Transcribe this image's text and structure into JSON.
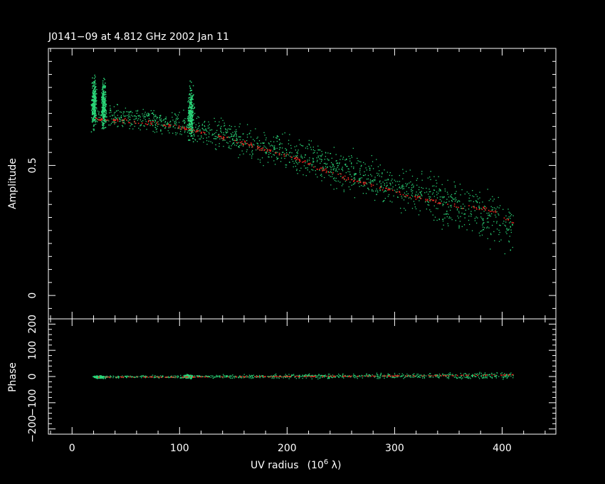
{
  "chart_data": [
    {
      "type": "scatter",
      "title": "J0141−09 at 4.812 GHz 2002 Jan 11",
      "xlabel_main": "UV radius",
      "xlabel_unit": "(10",
      "xlabel_exp": "6",
      "xlabel_lambda": " λ)",
      "ylabel": "Amplitude",
      "xlim": [
        -22,
        450
      ],
      "ylim": [
        -0.09,
        0.95
      ],
      "xticks": [
        0,
        100,
        200,
        300,
        400
      ],
      "xtick_labels": [
        "0",
        "100",
        "200",
        "300",
        "400"
      ],
      "yticks": [
        0,
        0.5
      ],
      "ytick_labels": [
        "0",
        "0.5"
      ],
      "colors": {
        "data": "#2bd779",
        "model": "#e8241f",
        "frame": "#ffffff"
      },
      "series": [
        {
          "role": "data",
          "clusters": [
            {
              "x": 20,
              "y": 0.74,
              "spread_x": 3,
              "spread_y": 0.09
            },
            {
              "x": 29,
              "y": 0.73,
              "spread_x": 3,
              "spread_y": 0.09
            },
            {
              "x": 110,
              "y": 0.7,
              "spread_x": 4,
              "spread_y": 0.1
            }
          ],
          "trend": [
            [
              20,
              0.7
            ],
            [
              100,
              0.66
            ],
            [
              200,
              0.55
            ],
            [
              300,
              0.42
            ],
            [
              410,
              0.28
            ]
          ]
        },
        {
          "role": "model",
          "x": [
            20,
            60,
            100,
            150,
            200,
            250,
            300,
            350,
            390,
            410
          ],
          "y": [
            0.68,
            0.67,
            0.65,
            0.6,
            0.54,
            0.46,
            0.4,
            0.35,
            0.33,
            0.28
          ]
        }
      ]
    },
    {
      "type": "scatter",
      "ylabel": "Phase",
      "xlim": [
        -22,
        450
      ],
      "ylim": [
        -220,
        220
      ],
      "yticks": [
        -200,
        -100,
        0,
        100,
        200
      ],
      "ytick_labels": [
        "−200",
        "−100",
        "0",
        "100",
        "200"
      ],
      "colors": {
        "data": "#2bd779",
        "model": "#e8241f"
      },
      "series": [
        {
          "role": "data",
          "clusters": [
            {
              "x": 25,
              "y": 0,
              "spread_x": 8,
              "spread_y": 8
            },
            {
              "x": 108,
              "y": 2,
              "spread_x": 6,
              "spread_y": 10
            }
          ],
          "trend": [
            [
              20,
              0
            ],
            [
              410,
              5
            ]
          ]
        },
        {
          "role": "model",
          "x": [
            20,
            100,
            200,
            300,
            410
          ],
          "y": [
            0,
            0,
            2,
            4,
            8
          ]
        }
      ]
    }
  ]
}
